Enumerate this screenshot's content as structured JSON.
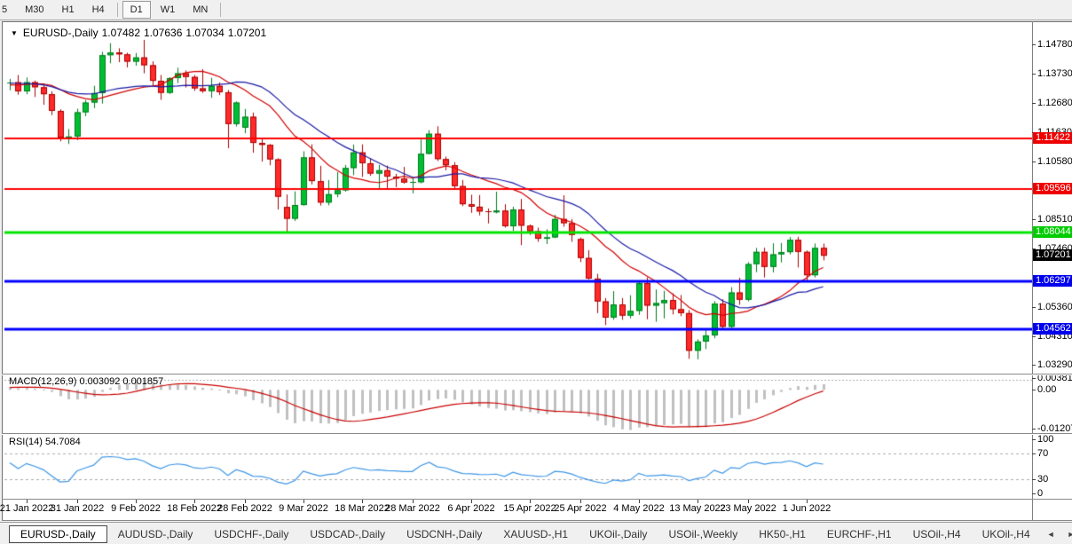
{
  "toolbar": {
    "items": [
      "5",
      "M30",
      "H1",
      "H4",
      "D1",
      "W1",
      "MN"
    ],
    "active": "D1",
    "separators_after": [
      3,
      6
    ]
  },
  "chart": {
    "title": "EURUSD-,Daily",
    "quote": {
      "open": "1.07482",
      "high": "1.07636",
      "low": "1.07034",
      "close": "1.07201"
    },
    "dropdown_icon": "▼",
    "price_ticks": [
      {
        "label": "1.14780",
        "price": 1.1478
      },
      {
        "label": "1.13730",
        "price": 1.1373
      },
      {
        "label": "1.12680",
        "price": 1.1268
      },
      {
        "label": "1.11630",
        "price": 1.1163
      },
      {
        "label": "1.10580",
        "price": 1.1058
      },
      {
        "label": "1.08510",
        "price": 1.0851
      },
      {
        "label": "1.07460",
        "price": 1.0746
      },
      {
        "label": "1.05360",
        "price": 1.0536
      },
      {
        "label": "1.04310",
        "price": 1.0431
      },
      {
        "label": "1.03290",
        "price": 1.0329
      }
    ],
    "badges": [
      {
        "label": "1.11422",
        "price": 1.11422,
        "color": "#EE0000"
      },
      {
        "label": "1.09596",
        "price": 1.09596,
        "color": "#EE0000"
      },
      {
        "label": "1.08044",
        "price": 1.08044,
        "color": "#00CC00"
      },
      {
        "label": "1.07201",
        "price": 1.07201,
        "color": "#000000"
      },
      {
        "label": "1.06297",
        "price": 1.06297,
        "color": "#0000EE"
      },
      {
        "label": "1.04562",
        "price": 1.04562,
        "color": "#0000EE"
      }
    ]
  },
  "chart_data": {
    "type": "candlestick",
    "symbol": "EURUSD-,Daily",
    "ylim": [
      1.03,
      1.1549
    ],
    "hlines": [
      {
        "price": 1.11422,
        "color": "#FF0000",
        "width": 2
      },
      {
        "price": 1.09596,
        "color": "#FF0000",
        "width": 2
      },
      {
        "price": 1.08044,
        "color": "#00E400",
        "width": 3
      },
      {
        "price": 1.06297,
        "color": "#0000FF",
        "width": 3
      },
      {
        "price": 1.04562,
        "color": "#0000FF",
        "width": 3
      }
    ],
    "overlays": {
      "ma_fast_period": 13,
      "ma_slow_period": 20
    },
    "x_labels": [
      [
        "21 Jan 2022",
        2
      ],
      [
        "31 Jan 2022",
        8
      ],
      [
        "9 Feb 2022",
        15
      ],
      [
        "18 Feb 2022",
        22
      ],
      [
        "28 Feb 2022",
        28
      ],
      [
        "9 Mar 2022",
        35
      ],
      [
        "18 Mar 2022",
        42
      ],
      [
        "28 Mar 2022",
        48
      ],
      [
        "6 Apr 2022",
        55
      ],
      [
        "15 Apr 2022",
        62
      ],
      [
        "25 Apr 2022",
        68
      ],
      [
        "4 May 2022",
        75
      ],
      [
        "13 May 2022",
        82
      ],
      [
        "23 May 2022",
        88
      ],
      [
        "1 Jun 2022",
        95
      ]
    ],
    "prehistory_closes": [
      1.1286,
      1.13,
      1.1316,
      1.1331,
      1.1345,
      1.1338,
      1.1325,
      1.1311,
      1.1298,
      1.1304,
      1.1318,
      1.1333,
      1.1347,
      1.1358,
      1.1372,
      1.1366,
      1.1352,
      1.1338,
      1.1322,
      1.1308,
      1.1295,
      1.1303,
      1.1315,
      1.1331,
      1.1346,
      1.1359,
      1.1371,
      1.136,
      1.1347,
      1.1332
    ],
    "candles": [
      [
        "19 Jan",
        1.134,
        1.1355,
        1.1314,
        1.1343
      ],
      [
        "20 Jan",
        1.1343,
        1.1369,
        1.1298,
        1.131
      ],
      [
        "21 Jan",
        1.131,
        1.136,
        1.13,
        1.1343
      ],
      [
        "24 Jan",
        1.1343,
        1.1349,
        1.129,
        1.1325
      ],
      [
        "25 Jan",
        1.1325,
        1.1338,
        1.1262,
        1.13
      ],
      [
        "26 Jan",
        1.13,
        1.131,
        1.1225,
        1.124
      ],
      [
        "27 Jan",
        1.124,
        1.1246,
        1.1131,
        1.1144
      ],
      [
        "28 Jan",
        1.1144,
        1.1175,
        1.1121,
        1.1148
      ],
      [
        "31 Jan",
        1.1148,
        1.1248,
        1.1135,
        1.1235
      ],
      [
        "1 Feb",
        1.1235,
        1.1279,
        1.1221,
        1.127
      ],
      [
        "2 Feb",
        1.127,
        1.133,
        1.125,
        1.1304
      ],
      [
        "3 Feb",
        1.1304,
        1.1452,
        1.1266,
        1.144
      ],
      [
        "4 Feb",
        1.144,
        1.1483,
        1.1411,
        1.145
      ],
      [
        "7 Feb",
        1.145,
        1.1465,
        1.1415,
        1.1443
      ],
      [
        "8 Feb",
        1.1443,
        1.1449,
        1.1396,
        1.1417
      ],
      [
        "9 Feb",
        1.1417,
        1.1448,
        1.1402,
        1.1432
      ],
      [
        "10 Feb",
        1.1432,
        1.1495,
        1.1375,
        1.1404
      ],
      [
        "11 Feb",
        1.1404,
        1.1418,
        1.133,
        1.1348
      ],
      [
        "14 Feb",
        1.1348,
        1.1369,
        1.128,
        1.1305
      ],
      [
        "15 Feb",
        1.1305,
        1.1361,
        1.1301,
        1.1358
      ],
      [
        "16 Feb",
        1.1358,
        1.1395,
        1.134,
        1.1375
      ],
      [
        "17 Feb",
        1.1375,
        1.1385,
        1.1324,
        1.1362
      ],
      [
        "18 Feb",
        1.1362,
        1.1369,
        1.1312,
        1.1321
      ],
      [
        "21 Feb",
        1.1321,
        1.139,
        1.1305,
        1.1311
      ],
      [
        "22 Feb",
        1.1311,
        1.1359,
        1.1287,
        1.133
      ],
      [
        "23 Feb",
        1.133,
        1.1342,
        1.1297,
        1.1307
      ],
      [
        "24 Feb",
        1.1307,
        1.1315,
        1.1106,
        1.1193
      ],
      [
        "25 Feb",
        1.1193,
        1.1274,
        1.1184,
        1.127
      ],
      [
        "28 Feb",
        1.118,
        1.1247,
        1.116,
        1.1219
      ],
      [
        "1 Mar",
        1.1219,
        1.1234,
        1.109,
        1.1125
      ],
      [
        "2 Mar",
        1.1125,
        1.1143,
        1.1058,
        1.1118
      ],
      [
        "3 Mar",
        1.1118,
        1.1121,
        1.1045,
        1.1066
      ],
      [
        "4 Mar",
        1.1066,
        1.107,
        1.0886,
        1.0932
      ],
      [
        "7 Mar",
        1.0895,
        1.094,
        1.0806,
        1.0853
      ],
      [
        "8 Mar",
        1.0853,
        1.0951,
        1.0845,
        1.0902
      ],
      [
        "9 Mar",
        1.0902,
        1.1095,
        1.09,
        1.1073
      ],
      [
        "10 Mar",
        1.1073,
        1.112,
        1.0976,
        1.0988
      ],
      [
        "11 Mar",
        1.0988,
        1.1043,
        1.09,
        1.0911
      ],
      [
        "14 Mar",
        1.0911,
        1.0992,
        1.0901,
        1.0941
      ],
      [
        "15 Mar",
        1.0941,
        1.102,
        1.093,
        1.0955
      ],
      [
        "16 Mar",
        1.0955,
        1.1046,
        1.095,
        1.1035
      ],
      [
        "17 Mar",
        1.1035,
        1.1119,
        1.1009,
        1.1091
      ],
      [
        "18 Mar",
        1.1091,
        1.112,
        1.1003,
        1.1052
      ],
      [
        "21 Mar",
        1.1052,
        1.1069,
        1.1007,
        1.1015
      ],
      [
        "22 Mar",
        1.1015,
        1.1046,
        1.0961,
        1.1027
      ],
      [
        "23 Mar",
        1.1027,
        1.1044,
        1.0963,
        1.1004
      ],
      [
        "24 Mar",
        1.1004,
        1.1014,
        1.0966,
        1.0997
      ],
      [
        "25 Mar",
        1.0997,
        1.1039,
        1.0979,
        1.0983
      ],
      [
        "28 Mar",
        1.0983,
        1.1,
        1.0944,
        1.0984
      ],
      [
        "29 Mar",
        1.0984,
        1.1137,
        1.098,
        1.1086
      ],
      [
        "30 Mar",
        1.1086,
        1.1171,
        1.1084,
        1.1158
      ],
      [
        "31 Mar",
        1.1158,
        1.1185,
        1.106,
        1.1067
      ],
      [
        "1 Apr",
        1.1067,
        1.1076,
        1.1027,
        1.1045
      ],
      [
        "4 Apr",
        1.1045,
        1.1056,
        1.096,
        1.097
      ],
      [
        "5 Apr",
        1.097,
        1.0992,
        1.0898,
        1.0905
      ],
      [
        "6 Apr",
        1.0905,
        1.0939,
        1.0874,
        1.0896
      ],
      [
        "7 Apr",
        1.0896,
        1.0938,
        1.0865,
        1.0879
      ],
      [
        "8 Apr",
        1.0879,
        1.089,
        1.0836,
        1.0876
      ],
      [
        "11 Apr",
        1.0876,
        1.095,
        1.0872,
        1.0882
      ],
      [
        "12 Apr",
        1.0882,
        1.0905,
        1.0821,
        1.0826
      ],
      [
        "13 Apr",
        1.0826,
        1.0896,
        1.0809,
        1.0886
      ],
      [
        "14 Apr",
        1.0886,
        1.0924,
        1.0758,
        1.0828
      ],
      [
        "15 Apr",
        1.0828,
        1.0832,
        1.0795,
        1.0808
      ],
      [
        "18 Apr",
        1.0808,
        1.0821,
        1.077,
        1.0781
      ],
      [
        "19 Apr",
        1.0781,
        1.0815,
        1.0762,
        1.0786
      ],
      [
        "20 Apr",
        1.0786,
        1.0867,
        1.0783,
        1.0852
      ],
      [
        "21 Apr",
        1.0852,
        1.0937,
        1.0824,
        1.0837
      ],
      [
        "22 Apr",
        1.0837,
        1.0852,
        1.077,
        1.0795
      ],
      [
        "25 Apr",
        1.078,
        1.0785,
        1.0697,
        1.0712
      ],
      [
        "26 Apr",
        1.0712,
        1.074,
        1.0635,
        1.0638
      ],
      [
        "27 Apr",
        1.0638,
        1.0655,
        1.0514,
        1.0556
      ],
      [
        "28 Apr",
        1.0556,
        1.0568,
        1.0471,
        1.0498
      ],
      [
        "29 Apr",
        1.0498,
        1.0593,
        1.049,
        1.0545
      ],
      [
        "2 May",
        1.0545,
        1.0568,
        1.049,
        1.0505
      ],
      [
        "3 May",
        1.0505,
        1.0578,
        1.0495,
        1.0522
      ],
      [
        "4 May",
        1.0522,
        1.0632,
        1.0508,
        1.0622
      ],
      [
        "5 May",
        1.0622,
        1.0642,
        1.0492,
        1.0541
      ],
      [
        "6 May",
        1.0541,
        1.0599,
        1.0483,
        1.055
      ],
      [
        "9 May",
        1.055,
        1.0594,
        1.0495,
        1.0561
      ],
      [
        "10 May",
        1.0561,
        1.0585,
        1.0509,
        1.0528
      ],
      [
        "11 May",
        1.0528,
        1.0579,
        1.0503,
        1.0514
      ],
      [
        "12 May",
        1.0514,
        1.0525,
        1.035,
        1.0379
      ],
      [
        "13 May",
        1.0379,
        1.042,
        1.0348,
        1.0412
      ],
      [
        "16 May",
        1.0412,
        1.0452,
        1.0385,
        1.0434
      ],
      [
        "17 May",
        1.0434,
        1.0557,
        1.0424,
        1.0548
      ],
      [
        "18 May",
        1.0548,
        1.0564,
        1.0458,
        1.0465
      ],
      [
        "19 May",
        1.0465,
        1.0607,
        1.0459,
        1.0588
      ],
      [
        "20 May",
        1.0588,
        1.0641,
        1.0544,
        1.0562
      ],
      [
        "23 May",
        1.0562,
        1.0697,
        1.0556,
        1.069
      ],
      [
        "24 May",
        1.069,
        1.0748,
        1.0661,
        1.0734
      ],
      [
        "25 May",
        1.0734,
        1.0749,
        1.0642,
        1.068
      ],
      [
        "26 May",
        1.068,
        1.0765,
        1.066,
        1.0725
      ],
      [
        "27 May",
        1.0725,
        1.0766,
        1.0696,
        1.0733
      ],
      [
        "30 May",
        1.0733,
        1.0787,
        1.0725,
        1.0777
      ],
      [
        "31 May",
        1.0777,
        1.0788,
        1.0678,
        1.0734
      ],
      [
        "1 Jun",
        1.0734,
        1.0739,
        1.0627,
        1.065
      ],
      [
        "2 Jun",
        1.065,
        1.0764,
        1.0642,
        1.0748
      ],
      [
        "3 Jun",
        1.07482,
        1.07636,
        1.07034,
        1.07201
      ]
    ],
    "panes": {
      "macd": {
        "label": "MACD(12,26,9) 0.003092 0.001857",
        "params": [
          12,
          26,
          9
        ],
        "macd_value": 0.003092,
        "signal_value": 0.001857,
        "dotted_level": 0.003092,
        "axis": [
          {
            "label": "0.003814",
            "value": 0.003814
          },
          {
            "label": "0.00",
            "value": 0
          },
          {
            "label": "-0.012073",
            "value": -0.012073
          }
        ],
        "range": [
          -0.0128,
          0.0042
        ]
      },
      "rsi": {
        "label": "RSI(14) 54.7084",
        "period": 14,
        "value": 54.7084,
        "axis": [
          {
            "label": "100",
            "value": 100
          },
          {
            "label": "70",
            "value": 70
          },
          {
            "label": "30",
            "value": 30
          },
          {
            "label": "0",
            "value": 0
          }
        ],
        "levels": [
          70,
          30
        ]
      }
    }
  },
  "colors": {
    "candle_up": "#00BE32",
    "candle_up_border": "#007A1E",
    "candle_down": "#FF2A2A",
    "candle_down_border": "#AA0000",
    "ma_fast": "#D20000",
    "ma_slow": "#1A1AA6",
    "macd_hist": "#C0C0C0",
    "macd_signal": "#C80000",
    "rsi_line": "#3E96E6",
    "dashed_level": "#ABABAB",
    "axis_text": "#000000"
  },
  "tabs": {
    "items": [
      "EURUSD-,Daily",
      "AUDUSD-,Daily",
      "USDCHF-,Daily",
      "USDCAD-,Daily",
      "USDCNH-,Daily",
      "XAUUSD-,H1",
      "UKOil-,Daily",
      "USOil-,Weekly",
      "HK50-,H1",
      "EURCHF-,H1",
      "USOil-,H4",
      "UKOil-,H4"
    ],
    "active_index": 0,
    "scroll_left_icon": "◄",
    "scroll_right_icon": "►"
  }
}
